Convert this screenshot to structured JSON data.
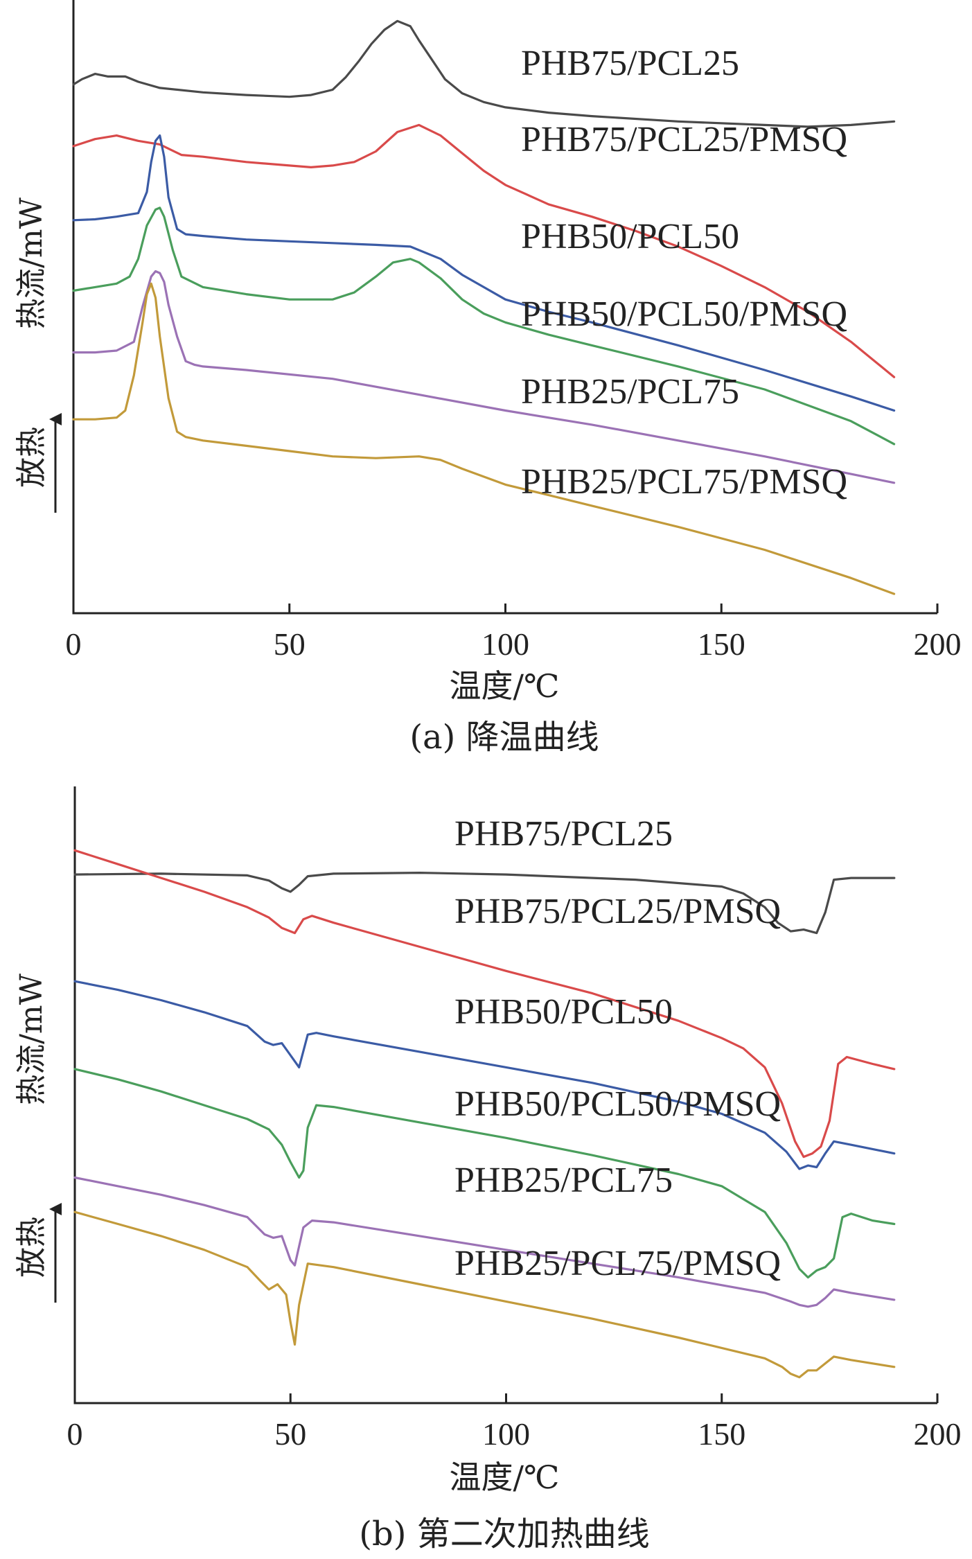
{
  "chart_data": [
    {
      "type": "line",
      "title": "(a) 降温曲线",
      "xlabel": "温度/℃",
      "ylabel": "热流/mW",
      "ylabel_direction": "放热",
      "xlim": [
        0,
        200
      ],
      "xticks": [
        0,
        50,
        100,
        150,
        200
      ],
      "yticks_shown": false,
      "grid": false,
      "legend": "inline-labels-right",
      "series": [
        {
          "name": "PHB75/PCL25",
          "color": "#4a4a4a",
          "x": [
            0,
            2,
            5,
            8,
            12,
            15,
            20,
            30,
            40,
            50,
            55,
            60,
            63,
            66,
            69,
            72,
            75,
            78,
            80,
            83,
            86,
            90,
            95,
            100,
            110,
            120,
            140,
            160,
            170,
            180,
            190
          ],
          "y": [
            2.3,
            2.6,
            2.9,
            2.75,
            2.75,
            2.45,
            2.1,
            1.85,
            1.7,
            1.6,
            1.7,
            2.0,
            2.7,
            3.6,
            4.6,
            5.4,
            5.9,
            5.6,
            4.8,
            3.7,
            2.6,
            1.8,
            1.3,
            1.0,
            0.7,
            0.5,
            0.2,
            0.0,
            -0.1,
            0.0,
            0.2
          ]
        },
        {
          "name": "PHB75/PCL25/PMSQ",
          "color": "#d94a4a",
          "x": [
            0,
            5,
            10,
            15,
            20,
            25,
            30,
            40,
            50,
            55,
            60,
            65,
            70,
            75,
            80,
            85,
            90,
            95,
            100,
            110,
            120,
            130,
            140,
            150,
            160,
            170,
            180,
            190
          ],
          "y": [
            -1.2,
            -0.8,
            -0.6,
            -0.9,
            -1.1,
            -1.7,
            -1.8,
            -2.1,
            -2.3,
            -2.4,
            -2.3,
            -2.1,
            -1.5,
            -0.4,
            0.0,
            -0.6,
            -1.6,
            -2.6,
            -3.4,
            -4.5,
            -5.2,
            -6.0,
            -6.9,
            -8.0,
            -9.2,
            -10.6,
            -12.3,
            -14.3
          ]
        },
        {
          "name": "PHB50/PCL50",
          "color": "#3b5ba5",
          "x": [
            0,
            5,
            10,
            15,
            17,
            18,
            19,
            20,
            21,
            22,
            24,
            26,
            30,
            40,
            50,
            60,
            70,
            78,
            85,
            90,
            95,
            100,
            110,
            120,
            140,
            160,
            180,
            190
          ],
          "y": [
            -5.4,
            -5.35,
            -5.2,
            -5.0,
            -3.8,
            -2.1,
            -0.9,
            -0.6,
            -1.8,
            -4.1,
            -5.9,
            -6.2,
            -6.3,
            -6.5,
            -6.6,
            -6.7,
            -6.8,
            -6.9,
            -7.6,
            -8.5,
            -9.2,
            -9.9,
            -10.6,
            -11.2,
            -12.5,
            -13.9,
            -15.4,
            -16.2
          ]
        },
        {
          "name": "PHB50/PCL50/PMSQ",
          "color": "#4a9e5c",
          "x": [
            0,
            5,
            10,
            13,
            15,
            17,
            19,
            20,
            21,
            23,
            25,
            30,
            40,
            50,
            60,
            65,
            70,
            74,
            78,
            80,
            85,
            90,
            95,
            100,
            110,
            120,
            140,
            160,
            180,
            190
          ],
          "y": [
            -9.4,
            -9.2,
            -9.0,
            -8.6,
            -7.6,
            -5.7,
            -4.8,
            -4.7,
            -5.2,
            -7.1,
            -8.6,
            -9.2,
            -9.6,
            -9.9,
            -9.9,
            -9.5,
            -8.6,
            -7.8,
            -7.6,
            -7.8,
            -8.7,
            -9.9,
            -10.7,
            -11.2,
            -11.9,
            -12.5,
            -13.7,
            -15.0,
            -16.8,
            -18.1
          ]
        },
        {
          "name": "PHB25/PCL75",
          "color": "#9b72b5",
          "x": [
            0,
            5,
            10,
            14,
            16,
            18,
            19,
            20,
            21,
            22,
            24,
            26,
            28,
            30,
            40,
            60,
            80,
            100,
            120,
            140,
            160,
            180,
            190
          ],
          "y": [
            -12.9,
            -12.9,
            -12.8,
            -12.3,
            -10.3,
            -8.6,
            -8.3,
            -8.4,
            -8.9,
            -10.2,
            -12.0,
            -13.4,
            -13.6,
            -13.7,
            -13.9,
            -14.4,
            -15.3,
            -16.2,
            -17.0,
            -17.9,
            -18.8,
            -19.8,
            -20.3
          ]
        },
        {
          "name": "PHB25/PCL75/PMSQ",
          "color": "#c29a3a",
          "x": [
            0,
            5,
            10,
            12,
            14,
            16,
            17,
            18,
            19,
            20,
            22,
            24,
            26,
            30,
            40,
            50,
            60,
            70,
            80,
            85,
            90,
            100,
            110,
            120,
            140,
            160,
            180,
            190
          ],
          "y": [
            -16.7,
            -16.7,
            -16.6,
            -16.2,
            -14.2,
            -11.2,
            -9.6,
            -9.0,
            -9.8,
            -12.0,
            -15.5,
            -17.4,
            -17.7,
            -17.9,
            -18.2,
            -18.5,
            -18.8,
            -18.9,
            -18.8,
            -19.0,
            -19.5,
            -20.4,
            -21.0,
            -21.6,
            -22.8,
            -24.1,
            -25.7,
            -26.6
          ]
        }
      ]
    },
    {
      "type": "line",
      "title": "(b) 第二次加热曲线",
      "xlabel": "温度/℃",
      "ylabel": "热流/mW",
      "ylabel_direction": "放热",
      "xlim": [
        0,
        200
      ],
      "xticks": [
        0,
        50,
        100,
        150,
        200
      ],
      "yticks_shown": false,
      "grid": false,
      "legend": "inline-labels-right",
      "series": [
        {
          "name": "PHB75/PCL25",
          "color": "#4a4a4a",
          "x": [
            0,
            20,
            40,
            45,
            48,
            50,
            52,
            54,
            60,
            80,
            100,
            130,
            150,
            155,
            160,
            163,
            166,
            169,
            172,
            174,
            176,
            180,
            190
          ],
          "y": [
            0.0,
            0.05,
            -0.05,
            -0.35,
            -0.8,
            -1.0,
            -0.6,
            -0.1,
            0.05,
            0.1,
            0.0,
            -0.3,
            -0.7,
            -1.1,
            -1.9,
            -2.8,
            -3.3,
            -3.2,
            -3.4,
            -2.2,
            -0.3,
            -0.2,
            -0.2
          ]
        },
        {
          "name": "PHB75/PCL25/PMSQ",
          "color": "#d94a4a",
          "x": [
            0,
            10,
            20,
            30,
            40,
            45,
            48,
            51,
            53,
            55,
            60,
            80,
            100,
            120,
            140,
            150,
            155,
            160,
            164,
            167,
            169,
            171,
            173,
            175,
            177,
            179,
            185,
            190
          ],
          "y": [
            1.4,
            0.6,
            -0.2,
            -1.0,
            -1.9,
            -2.5,
            -3.1,
            -3.4,
            -2.6,
            -2.4,
            -2.8,
            -4.2,
            -5.6,
            -6.9,
            -8.5,
            -9.5,
            -10.1,
            -11.2,
            -13.3,
            -15.5,
            -16.4,
            -16.2,
            -15.8,
            -14.3,
            -11.0,
            -10.6,
            -11.0,
            -11.3
          ]
        },
        {
          "name": "PHB50/PCL50",
          "color": "#3b5ba5",
          "x": [
            0,
            10,
            20,
            30,
            40,
            44,
            46,
            48,
            50,
            52,
            54,
            56,
            60,
            80,
            100,
            120,
            140,
            150,
            160,
            165,
            168,
            170,
            172,
            174,
            176,
            180,
            190
          ],
          "y": [
            -6.2,
            -6.7,
            -7.3,
            -8.0,
            -8.8,
            -9.7,
            -9.9,
            -9.8,
            -10.5,
            -11.2,
            -9.3,
            -9.2,
            -9.4,
            -10.3,
            -11.2,
            -12.1,
            -13.2,
            -13.9,
            -15.0,
            -16.1,
            -17.1,
            -16.9,
            -17.0,
            -16.2,
            -15.5,
            -15.7,
            -16.2
          ]
        },
        {
          "name": "PHB50/PCL50/PMSQ",
          "color": "#4a9e5c",
          "x": [
            0,
            10,
            20,
            30,
            40,
            45,
            48,
            50,
            52,
            53,
            54,
            56,
            60,
            80,
            100,
            120,
            140,
            150,
            160,
            165,
            168,
            170,
            172,
            174,
            176,
            178,
            180,
            185,
            190
          ],
          "y": [
            -11.3,
            -11.9,
            -12.6,
            -13.4,
            -14.2,
            -14.8,
            -15.7,
            -16.7,
            -17.6,
            -17.2,
            -14.7,
            -13.4,
            -13.5,
            -14.4,
            -15.3,
            -16.3,
            -17.4,
            -18.1,
            -19.6,
            -21.4,
            -22.9,
            -23.4,
            -23.0,
            -22.8,
            -22.3,
            -19.9,
            -19.7,
            -20.1,
            -20.3
          ]
        },
        {
          "name": "PHB25/PCL75",
          "color": "#9b72b5",
          "x": [
            0,
            10,
            20,
            30,
            40,
            44,
            46,
            48,
            50,
            51,
            53,
            55,
            60,
            80,
            100,
            120,
            140,
            160,
            166,
            168,
            170,
            172,
            174,
            176,
            180,
            190
          ],
          "y": [
            -17.6,
            -18.1,
            -18.6,
            -19.2,
            -19.9,
            -20.9,
            -21.1,
            -21.0,
            -22.4,
            -22.7,
            -20.5,
            -20.1,
            -20.2,
            -21.0,
            -21.8,
            -22.6,
            -23.4,
            -24.3,
            -24.8,
            -25.0,
            -25.1,
            -25.0,
            -24.6,
            -24.1,
            -24.3,
            -24.7
          ]
        },
        {
          "name": "PHB25/PCL75/PMSQ",
          "color": "#c29a3a",
          "x": [
            0,
            10,
            20,
            30,
            40,
            43,
            45,
            47,
            49,
            50,
            51,
            52,
            54,
            60,
            80,
            100,
            120,
            140,
            160,
            164,
            166,
            168,
            170,
            172,
            174,
            176,
            180,
            190
          ],
          "y": [
            -19.6,
            -20.3,
            -21.0,
            -21.8,
            -22.8,
            -23.6,
            -24.1,
            -23.8,
            -24.4,
            -26.0,
            -27.3,
            -25.0,
            -22.6,
            -22.8,
            -23.8,
            -24.8,
            -25.8,
            -26.9,
            -28.1,
            -28.6,
            -29.0,
            -29.2,
            -28.8,
            -28.8,
            -28.4,
            -28.0,
            -28.2,
            -28.6
          ]
        }
      ]
    }
  ]
}
